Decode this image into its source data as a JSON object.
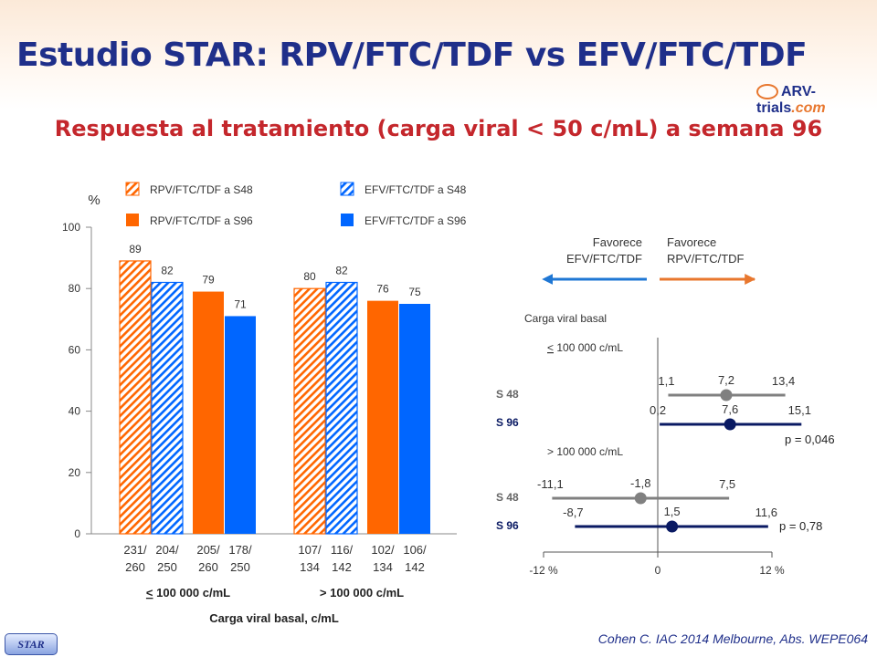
{
  "title": "Estudio STAR: RPV/FTC/TDF vs EFV/FTC/TDF",
  "subtitle": "Respuesta al tratamiento (carga viral < 50 c/mL) a semana 96",
  "logo": {
    "brand": "ARV-trials",
    "suffix": ".com"
  },
  "badge": "STAR",
  "footer": "Cohen C. IAC 2014 Melbourne, Abs. WEPE064",
  "colors": {
    "title": "#1f2f8a",
    "subtitle": "#c4272c",
    "orange": "#ff6600",
    "blue": "#0066ff",
    "dark_blue": "#0a1a63",
    "gray": "#808080"
  },
  "chart_data": [
    {
      "type": "bar",
      "ylabel": "%",
      "ylim": [
        0,
        100
      ],
      "yticks": [
        0,
        20,
        40,
        60,
        80,
        100
      ],
      "xlabel": "Carga viral basal,  c/mL",
      "groups": [
        {
          "label": "< 100 000 c/mL",
          "underline_first": true
        },
        {
          "label": "> 100 000 c/mL",
          "underline_first": false
        }
      ],
      "legend": [
        {
          "label": "RPV/FTC/TDF a S48",
          "color": "#ff6600",
          "hatched": true
        },
        {
          "label": "EFV/FTC/TDF a S48",
          "color": "#0066ff",
          "hatched": true
        },
        {
          "label": "RPV/FTC/TDF a S96",
          "color": "#ff6600",
          "hatched": false
        },
        {
          "label": "EFV/FTC/TDF a S96",
          "color": "#0066ff",
          "hatched": false
        }
      ],
      "bars": [
        {
          "group": 0,
          "series": "RPV/FTC/TDF a S48",
          "value": 89,
          "n": "231/",
          "N": "260"
        },
        {
          "group": 0,
          "series": "EFV/FTC/TDF a S48",
          "value": 82,
          "n": "204/",
          "N": "250"
        },
        {
          "group": 0,
          "series": "RPV/FTC/TDF a S96",
          "value": 79,
          "n": "205/",
          "N": "260"
        },
        {
          "group": 0,
          "series": "EFV/FTC/TDF a S96",
          "value": 71,
          "n": "178/",
          "N": "250"
        },
        {
          "group": 1,
          "series": "RPV/FTC/TDF a S48",
          "value": 80,
          "n": "107/",
          "N": "134"
        },
        {
          "group": 1,
          "series": "EFV/FTC/TDF a S48",
          "value": 82,
          "n": "116/",
          "N": "142"
        },
        {
          "group": 1,
          "series": "RPV/FTC/TDF a S96",
          "value": 76,
          "n": "102/",
          "N": "134"
        },
        {
          "group": 1,
          "series": "EFV/FTC/TDF a S96",
          "value": 75,
          "n": "106/",
          "N": "142"
        }
      ]
    },
    {
      "type": "scatter",
      "subtype": "forest",
      "xlim": [
        -12,
        12
      ],
      "xticks": [
        {
          "value": -12,
          "label": "-12 %"
        },
        {
          "value": 0,
          "label": "0"
        },
        {
          "value": 12,
          "label": "12 %"
        }
      ],
      "favors_left": [
        "Favorece",
        "EFV/FTC/TDF"
      ],
      "favors_right": [
        "Favorece",
        "RPV/FTC/TDF"
      ],
      "header": "Carga viral basal",
      "subgroups": [
        {
          "label": "< 100 000 c/mL",
          "underline_first": true,
          "p_value": "p = 0,046",
          "rows": [
            {
              "week": "S 48",
              "lower": 1.1,
              "estimate": 7.2,
              "upper": 13.4,
              "lower_label": "1,1",
              "estimate_label": "7,2",
              "upper_label": "13,4",
              "color": "#808080"
            },
            {
              "week": "S 96",
              "lower": 0.2,
              "estimate": 7.6,
              "upper": 15.1,
              "lower_label": "0,2",
              "estimate_label": "7,6",
              "upper_label": "15,1",
              "color": "#0a1a63"
            }
          ]
        },
        {
          "label": "> 100 000 c/mL",
          "underline_first": false,
          "p_value": "p = 0,78",
          "rows": [
            {
              "week": "S 48",
              "lower": -11.1,
              "estimate": -1.8,
              "upper": 7.5,
              "lower_label": "-11,1",
              "estimate_label": "-1,8",
              "upper_label": "7,5",
              "color": "#808080"
            },
            {
              "week": "S 96",
              "lower": -8.7,
              "estimate": 1.5,
              "upper": 11.6,
              "lower_label": "-8,7",
              "estimate_label": "1,5",
              "upper_label": "11,6",
              "color": "#0a1a63"
            }
          ]
        }
      ]
    }
  ]
}
